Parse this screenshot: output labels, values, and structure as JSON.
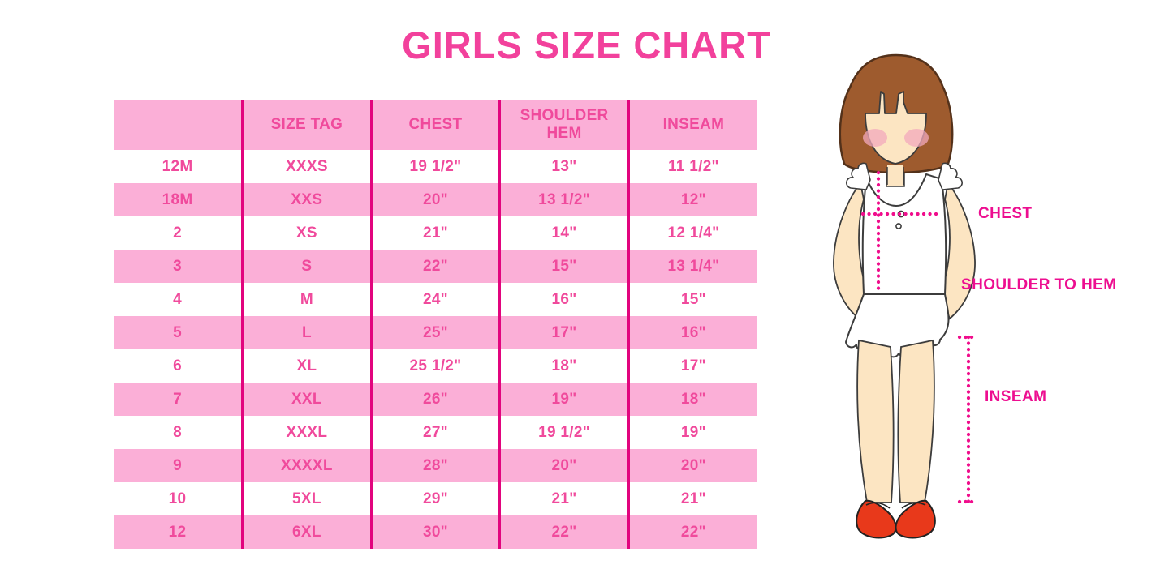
{
  "title": "GIRLS SIZE CHART",
  "chart_data": {
    "type": "table",
    "title": "GIRLS SIZE CHART",
    "columns": [
      "",
      "SIZE TAG",
      "CHEST",
      "SHOULDER HEM",
      "INSEAM"
    ],
    "rows": [
      [
        "12M",
        "XXXS",
        "19 1/2\"",
        "13\"",
        "11 1/2\""
      ],
      [
        "18M",
        "XXS",
        "20\"",
        "13 1/2\"",
        "12\""
      ],
      [
        "2",
        "XS",
        "21\"",
        "14\"",
        "12 1/4\""
      ],
      [
        "3",
        "S",
        "22\"",
        "15\"",
        "13 1/4\""
      ],
      [
        "4",
        "M",
        "24\"",
        "16\"",
        "15\""
      ],
      [
        "5",
        "L",
        "25\"",
        "17\"",
        "16\""
      ],
      [
        "6",
        "XL",
        "25 1/2\"",
        "18\"",
        "17\""
      ],
      [
        "7",
        "XXL",
        "26\"",
        "19\"",
        "18\""
      ],
      [
        "8",
        "XXXL",
        "27\"",
        "19 1/2\"",
        "19\""
      ],
      [
        "9",
        "XXXXL",
        "28\"",
        "20\"",
        "20\""
      ],
      [
        "10",
        "5XL",
        "29\"",
        "21\"",
        "21\""
      ],
      [
        "12",
        "6XL",
        "30\"",
        "22\"",
        "22\""
      ]
    ],
    "layout_hints": {
      "header_background": "#FBAFD7",
      "alternating_rows": [
        "white",
        "pink"
      ],
      "column_dividers": true,
      "row_dividers": false
    }
  },
  "diagram": {
    "labels": {
      "chest": "CHEST",
      "shoulder_to_hem": "SHOULDER TO HEM",
      "inseam": "INSEAM"
    }
  },
  "colors": {
    "title_pink": "#F2419C",
    "row_pink": "#FBAFD7",
    "divider_magenta": "#E2047E",
    "cell_text_pink": "#F04A9C",
    "label_magenta": "#ED0E90",
    "dotted_line_magenta": "#F00D8C",
    "hair_brown": "#9E5B2E",
    "skin": "#FCE5C2",
    "blush": "#F3A9BD",
    "shoe_red": "#E8391B",
    "background": "#FFFFFF"
  }
}
